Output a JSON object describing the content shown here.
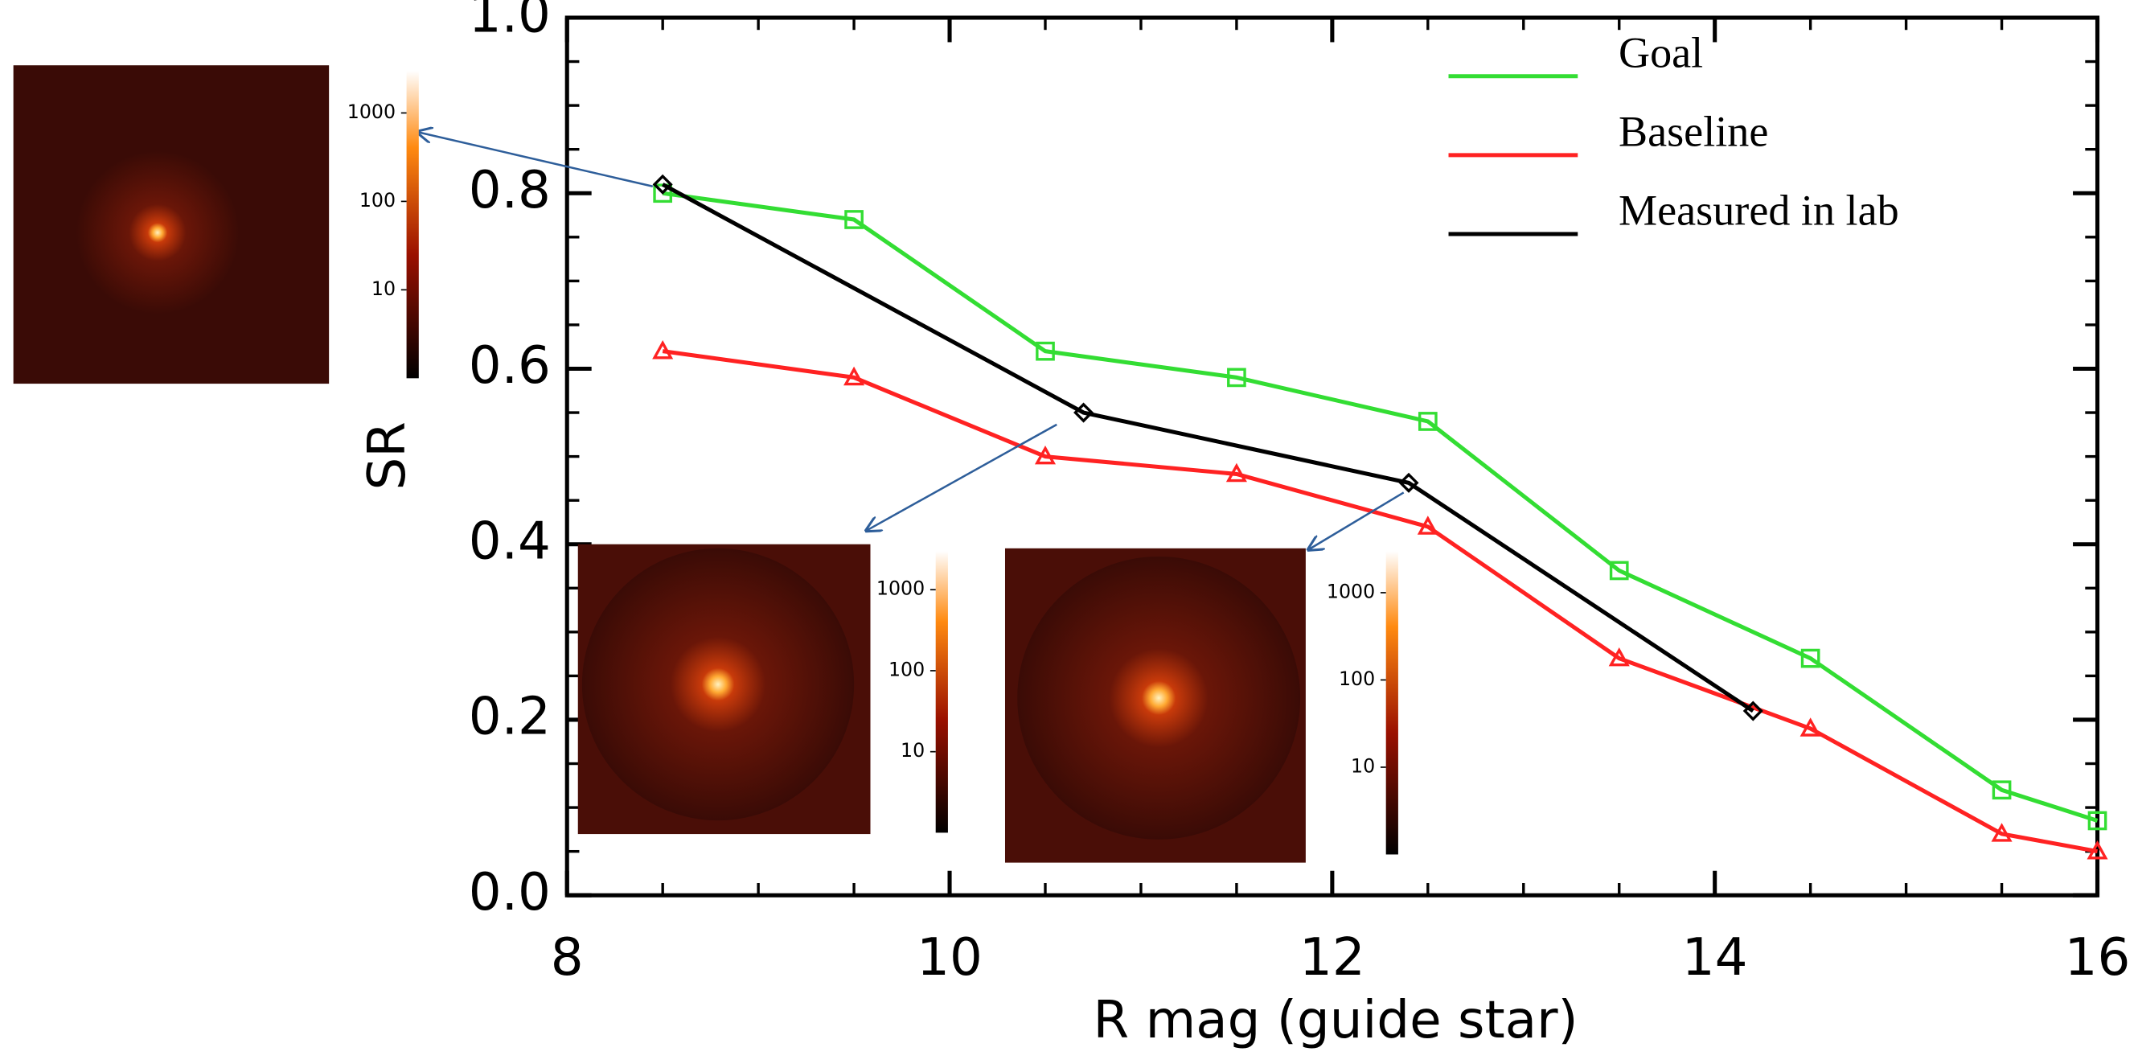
{
  "chart_data": {
    "type": "line",
    "x_label": "R mag (guide star)",
    "y_label": "SR",
    "xlim": [
      8,
      16
    ],
    "xticks": [
      8,
      10,
      12,
      14,
      16
    ],
    "ylim": [
      0,
      1
    ],
    "yticks": [
      {
        "value": 0,
        "label": "0.0"
      },
      0.2,
      0.4,
      0.6,
      0.8,
      {
        "value": 1,
        "label": "1.0"
      }
    ],
    "legend": "top-right",
    "series": [
      {
        "name": "Goal",
        "color": "#33dd33",
        "marker": "square",
        "x": [
          8.5,
          9.5,
          10.5,
          11.5,
          12.5,
          13.5,
          14.5,
          15.5,
          16
        ],
        "values": [
          0.8,
          0.77,
          0.62,
          0.59,
          0.54,
          0.37,
          0.27,
          0.12,
          0.085
        ]
      },
      {
        "name": "Baseline",
        "color": "#ff2222",
        "marker": "triangle",
        "x": [
          8.5,
          9.5,
          10.5,
          11.5,
          12.5,
          13.5,
          14.5,
          15.5,
          16
        ],
        "values": [
          0.62,
          0.59,
          0.5,
          0.48,
          0.42,
          0.27,
          0.19,
          0.07,
          0.05
        ]
      },
      {
        "name": "Measured in lab",
        "color": "#000000",
        "marker": "diamond",
        "x": [
          8.5,
          10.7,
          12.4,
          14.2
        ],
        "values": [
          0.81,
          0.55,
          0.47,
          0.21
        ]
      }
    ],
    "insets": [
      {
        "colorbar_scale": "log",
        "colorbar_lim": [
          1,
          3000
        ],
        "colorbar_ticks": [
          1000,
          100,
          10
        ]
      },
      {
        "colorbar_scale": "log",
        "colorbar_lim": [
          1,
          3000
        ],
        "colorbar_ticks": [
          1000,
          100,
          10
        ]
      },
      {
        "colorbar_scale": "log",
        "colorbar_lim": [
          1,
          3000
        ],
        "colorbar_ticks": [
          1000,
          100,
          10
        ]
      }
    ]
  }
}
